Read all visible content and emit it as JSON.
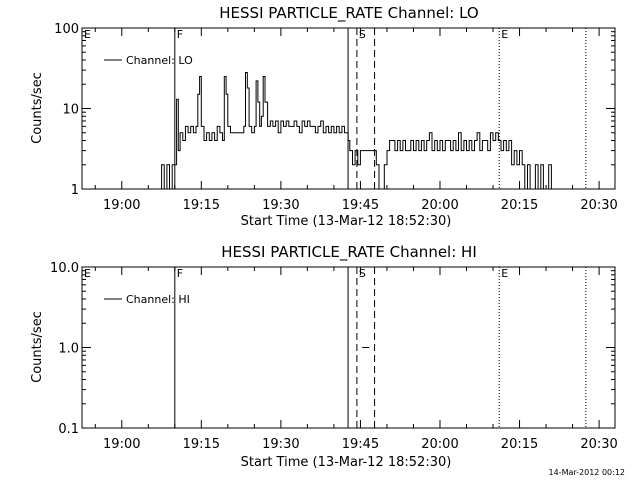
{
  "footer": {
    "timestamp": "14-Mar-2012 00:12"
  },
  "chart_data": [
    {
      "type": "line",
      "title": "HESSI PARTICLE_RATE Channel: LO",
      "xlabel": "Start Time (13-Mar-12 18:52:30)",
      "ylabel": "Counts/sec",
      "yscale": "log",
      "xlim": [
        "18:52:30",
        "20:33:00"
      ],
      "ylim": [
        1,
        100
      ],
      "x_ticks": [
        "19:00",
        "19:15",
        "19:30",
        "19:45",
        "20:00",
        "20:15",
        "20:30"
      ],
      "y_ticks": [
        "1",
        "10",
        "100"
      ],
      "legend": {
        "placement": "top-left",
        "entries": [
          "Channel: LO"
        ]
      },
      "markers": [
        {
          "label": "E",
          "time": "18:52:30",
          "style": "none"
        },
        {
          "label": "F",
          "time": "19:10:00",
          "style": "solid"
        },
        {
          "label": "",
          "time": "19:42:40",
          "style": "solid"
        },
        {
          "label": "S",
          "time": "19:44:20",
          "style": "dashed"
        },
        {
          "label": "",
          "time": "19:47:40",
          "style": "dashed"
        },
        {
          "label": "E",
          "time": "20:11:10",
          "style": "dotted"
        },
        {
          "label": "",
          "time": "20:27:30",
          "style": "dotted"
        }
      ],
      "series": [
        {
          "values": [
            [
              "19:07:00",
              1
            ],
            [
              "19:07:30",
              2
            ],
            [
              "19:08:00",
              1
            ],
            [
              "19:08:30",
              2
            ],
            [
              "19:09:00",
              1
            ],
            [
              "19:09:30",
              2
            ],
            [
              "19:10:00",
              2
            ],
            [
              "19:10:20",
              13
            ],
            [
              "19:10:40",
              3
            ],
            [
              "19:11:00",
              5
            ],
            [
              "19:11:30",
              4
            ],
            [
              "19:12:00",
              6
            ],
            [
              "19:12:30",
              5
            ],
            [
              "19:13:00",
              6
            ],
            [
              "19:13:30",
              5
            ],
            [
              "19:14:00",
              6
            ],
            [
              "19:14:20",
              15
            ],
            [
              "19:14:40",
              25
            ],
            [
              "19:15:00",
              6
            ],
            [
              "19:15:30",
              4
            ],
            [
              "19:16:00",
              5
            ],
            [
              "19:16:30",
              4
            ],
            [
              "19:17:00",
              5
            ],
            [
              "19:17:30",
              4
            ],
            [
              "19:18:00",
              6
            ],
            [
              "19:18:30",
              5
            ],
            [
              "19:19:00",
              4
            ],
            [
              "19:19:20",
              25
            ],
            [
              "19:19:40",
              15
            ],
            [
              "19:20:00",
              6
            ],
            [
              "19:20:30",
              5
            ],
            [
              "19:21:30",
              5
            ],
            [
              "19:22:30",
              5
            ],
            [
              "19:23:00",
              6
            ],
            [
              "19:23:20",
              28
            ],
            [
              "19:23:40",
              18
            ],
            [
              "19:24:00",
              6
            ],
            [
              "19:24:30",
              5
            ],
            [
              "19:25:00",
              6
            ],
            [
              "19:25:20",
              22
            ],
            [
              "19:25:40",
              12
            ],
            [
              "19:26:00",
              6
            ],
            [
              "19:26:20",
              8
            ],
            [
              "19:26:40",
              25
            ],
            [
              "19:27:00",
              12
            ],
            [
              "19:27:30",
              6
            ],
            [
              "19:28:00",
              7
            ],
            [
              "19:28:30",
              6
            ],
            [
              "19:29:00",
              7
            ],
            [
              "19:29:30",
              5
            ],
            [
              "19:30:00",
              7
            ],
            [
              "19:30:30",
              6
            ],
            [
              "19:31:00",
              7
            ],
            [
              "19:31:30",
              6
            ],
            [
              "19:32:00",
              6
            ],
            [
              "19:32:30",
              7
            ],
            [
              "19:33:00",
              6
            ],
            [
              "19:33:30",
              5
            ],
            [
              "19:34:00",
              7
            ],
            [
              "19:34:30",
              6
            ],
            [
              "19:35:00",
              7
            ],
            [
              "19:35:30",
              6
            ],
            [
              "19:36:00",
              6
            ],
            [
              "19:36:30",
              5
            ],
            [
              "19:37:00",
              6
            ],
            [
              "19:37:30",
              7
            ],
            [
              "19:38:00",
              5
            ],
            [
              "19:38:30",
              6
            ],
            [
              "19:39:00",
              5
            ],
            [
              "19:39:30",
              6
            ],
            [
              "19:40:00",
              5
            ],
            [
              "19:40:30",
              6
            ],
            [
              "19:41:00",
              5
            ],
            [
              "19:41:30",
              6
            ],
            [
              "19:42:00",
              5
            ],
            [
              "19:42:40",
              4
            ],
            [
              "19:43:00",
              3
            ],
            [
              "19:43:30",
              2
            ],
            [
              "19:44:00",
              3
            ],
            [
              "19:44:30",
              2
            ],
            [
              "19:45:00",
              3
            ],
            [
              "19:46:00",
              3
            ],
            [
              "19:47:00",
              3
            ],
            [
              "19:47:40",
              3
            ],
            [
              "19:48:00",
              2
            ],
            [
              "19:48:30",
              1
            ],
            [
              "19:49:00",
              1
            ],
            [
              "19:49:30",
              2
            ],
            [
              "19:50:00",
              3
            ],
            [
              "19:50:30",
              4
            ],
            [
              "19:51:00",
              4
            ],
            [
              "19:51:30",
              3
            ],
            [
              "19:52:00",
              4
            ],
            [
              "19:52:30",
              3
            ],
            [
              "19:53:00",
              4
            ],
            [
              "19:53:30",
              3
            ],
            [
              "19:54:00",
              3
            ],
            [
              "19:54:30",
              4
            ],
            [
              "19:55:00",
              3
            ],
            [
              "19:55:30",
              4
            ],
            [
              "19:56:00",
              3
            ],
            [
              "19:56:30",
              4
            ],
            [
              "19:57:00",
              3
            ],
            [
              "19:57:30",
              4
            ],
            [
              "19:58:00",
              5
            ],
            [
              "19:58:30",
              3
            ],
            [
              "19:59:00",
              4
            ],
            [
              "19:59:30",
              3
            ],
            [
              "20:00:00",
              4
            ],
            [
              "20:00:30",
              3
            ],
            [
              "20:01:00",
              4
            ],
            [
              "20:01:30",
              4
            ],
            [
              "20:02:00",
              3
            ],
            [
              "20:02:30",
              4
            ],
            [
              "20:03:00",
              3
            ],
            [
              "20:03:30",
              5
            ],
            [
              "20:04:00",
              3
            ],
            [
              "20:04:30",
              4
            ],
            [
              "20:05:00",
              3
            ],
            [
              "20:05:30",
              4
            ],
            [
              "20:06:00",
              3
            ],
            [
              "20:06:30",
              4
            ],
            [
              "20:07:00",
              5
            ],
            [
              "20:07:30",
              3
            ],
            [
              "20:08:00",
              4
            ],
            [
              "20:08:30",
              4
            ],
            [
              "20:09:00",
              3
            ],
            [
              "20:09:30",
              5
            ],
            [
              "20:10:00",
              4
            ],
            [
              "20:10:30",
              5
            ],
            [
              "20:11:00",
              4
            ],
            [
              "20:11:30",
              3
            ],
            [
              "20:12:00",
              4
            ],
            [
              "20:12:30",
              3
            ],
            [
              "20:13:00",
              4
            ],
            [
              "20:13:30",
              2
            ],
            [
              "20:14:00",
              3
            ],
            [
              "20:14:30",
              2
            ],
            [
              "20:15:00",
              3
            ],
            [
              "20:15:30",
              2
            ],
            [
              "20:16:00",
              1
            ],
            [
              "20:16:30",
              2
            ],
            [
              "20:17:00",
              1
            ],
            [
              "20:17:30",
              1
            ],
            [
              "20:18:00",
              2
            ],
            [
              "20:18:30",
              1
            ],
            [
              "20:19:00",
              2
            ],
            [
              "20:19:30",
              1
            ],
            [
              "20:20:00",
              1
            ],
            [
              "20:20:30",
              2
            ],
            [
              "20:21:00",
              1
            ]
          ]
        }
      ]
    },
    {
      "type": "line",
      "title": "HESSI PARTICLE_RATE Channel: HI",
      "xlabel": "Start Time (13-Mar-12 18:52:30)",
      "ylabel": "Counts/sec",
      "yscale": "log",
      "xlim": [
        "18:52:30",
        "20:33:00"
      ],
      "ylim": [
        0.1,
        10
      ],
      "x_ticks": [
        "19:00",
        "19:15",
        "19:30",
        "19:45",
        "20:00",
        "20:15",
        "20:30"
      ],
      "y_ticks": [
        "0.1",
        "1.0",
        "10.0"
      ],
      "legend": {
        "placement": "top-left",
        "entries": [
          "Channel: HI"
        ]
      },
      "markers": [
        {
          "label": "E",
          "time": "18:52:30",
          "style": "none"
        },
        {
          "label": "F",
          "time": "19:10:00",
          "style": "solid"
        },
        {
          "label": "",
          "time": "19:42:40",
          "style": "solid"
        },
        {
          "label": "S",
          "time": "19:44:20",
          "style": "dashed"
        },
        {
          "label": "",
          "time": "19:47:40",
          "style": "dashed"
        },
        {
          "label": "E",
          "time": "20:11:10",
          "style": "dotted"
        },
        {
          "label": "",
          "time": "20:27:30",
          "style": "dotted"
        }
      ],
      "series": [
        {
          "values": [
            [
              "19:45:20",
              1
            ],
            [
              "19:46:40",
              1
            ]
          ]
        }
      ]
    }
  ]
}
